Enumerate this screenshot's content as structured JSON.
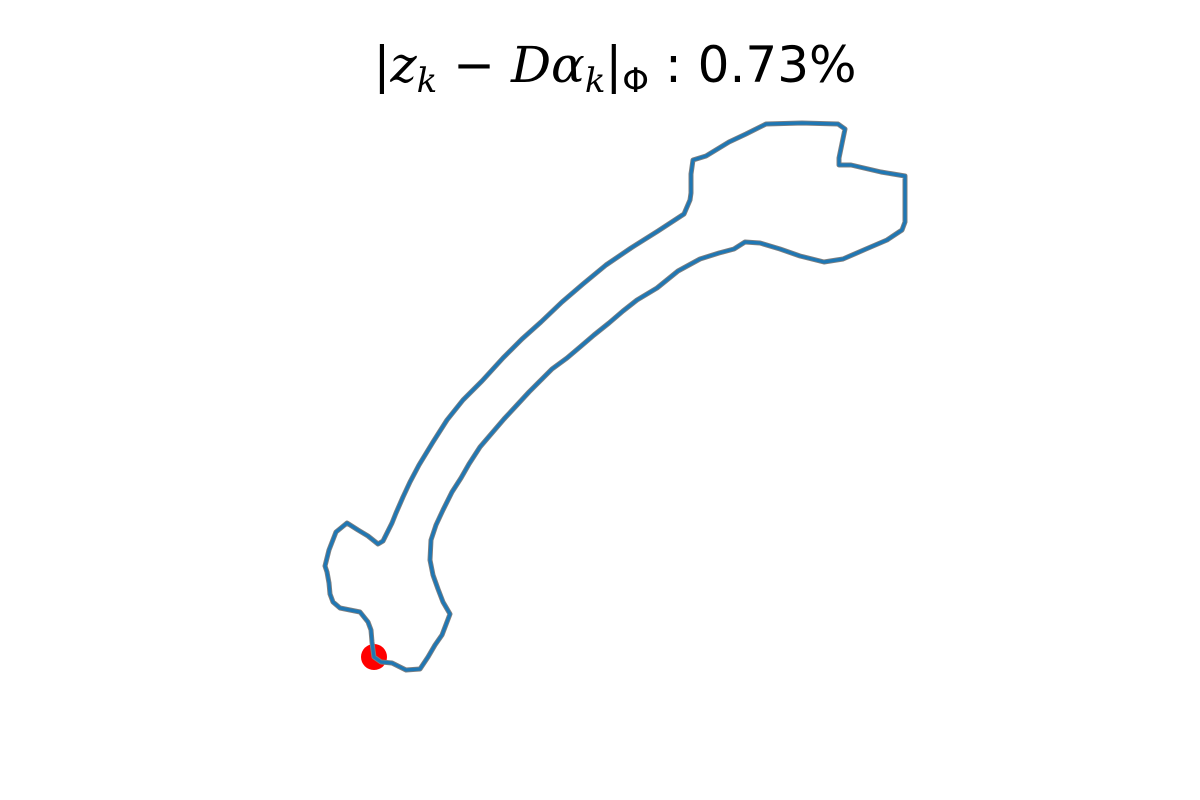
{
  "chart_data": {
    "type": "line",
    "title": {
      "open_bar": "|",
      "z": "z",
      "z_sub": "k",
      "minus": " − ",
      "D": "D",
      "alpha": "α",
      "alpha_sub": "k",
      "close_bar": "|",
      "norm_sub": "Φ",
      "value": " : 0.73%"
    },
    "axes_visible": false,
    "grid": false,
    "xlim": [
      320,
      910
    ],
    "ylim": [
      675,
      120
    ],
    "series": [
      {
        "role": "target-contour",
        "color": "#7f7f7f",
        "x": [
          374,
          373,
          372,
          371,
          368,
          360,
          350,
          340,
          333,
          330,
          329,
          327,
          325,
          329,
          336,
          347,
          358,
          368,
          378,
          383,
          387,
          392,
          396,
          403,
          410,
          419,
          433,
          447,
          463,
          482,
          503,
          522,
          541,
          562,
          583,
          606,
          631,
          658,
          684,
          690,
          691,
          691,
          693,
          706,
          729,
          746,
          766,
          802,
          838,
          845,
          839,
          839,
          851,
          881,
          905,
          905,
          902,
          887,
          866,
          843,
          824,
          800,
          780,
          760,
          745,
          734,
          719,
          700,
          678,
          657,
          637,
          623,
          609,
          594,
          580,
          567,
          552,
          540,
          529,
          517,
          504,
          492,
          480,
          469,
          461,
          452,
          443,
          436,
          431,
          430,
          433,
          438,
          443,
          450,
          442,
          435,
          428,
          420,
          406,
          392,
          381,
          374
        ],
        "y": [
          657,
          650,
          642,
          630,
          622,
          612,
          610,
          608,
          602,
          594,
          583,
          572,
          566,
          550,
          532,
          523,
          530,
          536,
          544,
          541,
          533,
          523,
          513,
          497,
          482,
          465,
          442,
          420,
          400,
          381,
          358,
          339,
          322,
          302,
          284,
          265,
          248,
          231,
          214,
          200,
          193,
          174,
          160,
          156,
          142,
          134,
          124,
          123,
          124,
          129,
          158,
          165,
          165,
          172,
          176,
          222,
          230,
          240,
          249,
          259,
          262,
          256,
          249,
          243,
          242,
          249,
          253,
          259,
          271,
          288,
          300,
          311,
          323,
          335,
          347,
          358,
          369,
          381,
          392,
          405,
          419,
          433,
          447,
          464,
          478,
          492,
          510,
          525,
          540,
          560,
          575,
          589,
          602,
          614,
          635,
          645,
          657,
          669,
          670,
          663,
          662,
          657
        ]
      },
      {
        "role": "reconstruction",
        "color": "#1f77b4",
        "x": [
          374,
          373,
          372,
          371,
          368,
          360,
          350,
          340,
          333,
          330,
          329,
          327,
          325,
          329,
          336,
          347,
          358,
          368,
          378,
          383,
          387,
          392,
          396,
          403,
          410,
          419,
          433,
          447,
          463,
          482,
          503,
          522,
          541,
          562,
          583,
          606,
          631,
          658,
          684,
          690,
          691,
          691,
          693,
          706,
          729,
          746,
          766,
          802,
          838,
          845,
          839,
          839,
          851,
          881,
          905,
          905,
          902,
          887,
          866,
          843,
          824,
          800,
          780,
          760,
          745,
          734,
          719,
          700,
          678,
          657,
          637,
          623,
          609,
          594,
          580,
          567,
          552,
          540,
          529,
          517,
          504,
          492,
          480,
          469,
          461,
          452,
          443,
          436,
          431,
          430,
          433,
          438,
          443,
          450,
          442,
          435,
          428,
          420,
          406,
          392,
          381,
          374
        ],
        "y": [
          657,
          650,
          642,
          630,
          622,
          612,
          610,
          608,
          602,
          594,
          583,
          572,
          566,
          550,
          532,
          523,
          530,
          536,
          544,
          541,
          533,
          523,
          513,
          497,
          482,
          465,
          442,
          420,
          400,
          381,
          358,
          339,
          322,
          302,
          284,
          265,
          248,
          231,
          214,
          200,
          193,
          174,
          160,
          156,
          142,
          134,
          124,
          123,
          124,
          129,
          158,
          165,
          165,
          172,
          176,
          222,
          230,
          240,
          249,
          259,
          262,
          256,
          249,
          243,
          242,
          249,
          253,
          259,
          271,
          288,
          300,
          311,
          323,
          335,
          347,
          358,
          369,
          381,
          392,
          405,
          419,
          433,
          447,
          464,
          478,
          492,
          510,
          525,
          540,
          560,
          575,
          589,
          602,
          614,
          635,
          645,
          657,
          669,
          670,
          663,
          662,
          657
        ]
      }
    ],
    "start_point": {
      "x": 374,
      "y": 657,
      "color": "#ff0000"
    }
  }
}
